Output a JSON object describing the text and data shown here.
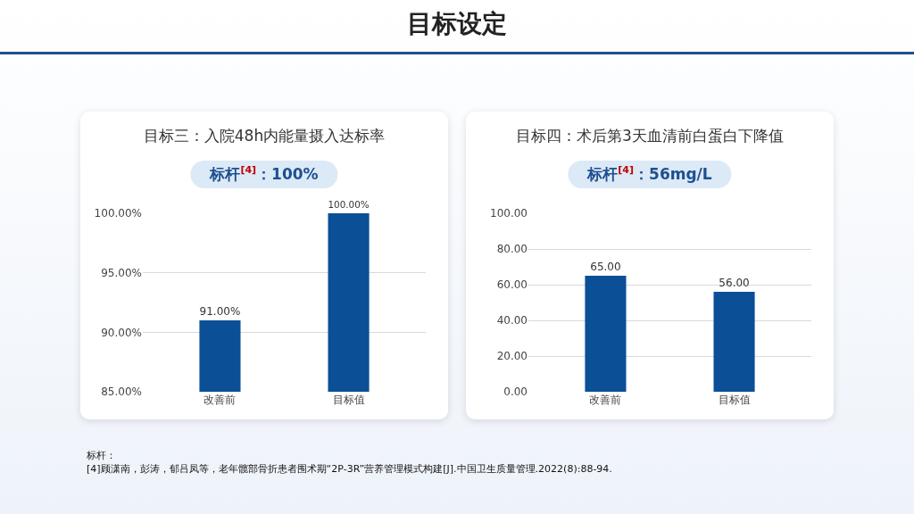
{
  "chart_data": [
    {
      "type": "bar",
      "title": "目标三：入院48h内能量摄入达标率",
      "subtitle": "标杆$^{[4]}$：100%",
      "annotations": [
        "目标设定",
        "标杆：",
        "[4]顾潇南，彭涛，郁吕凤等，老年髋部骨折患者围术期“2P-3R”营养管理模式构建[J].中国卫生质量管理.2022(8):88-94."
      ],
      "categories": [
        "改善前",
        "目标值"
      ],
      "values": [
        91,
        100
      ],
      "color": "#0b4f96",
      "value_labels": [
        "91.00%",
        "100.00%"
      ],
      "ylim": [
        85,
        100
      ],
      "yticks": [
        {
          "value": 85,
          "label": "85.00%"
        },
        {
          "value": 90,
          "label": "90.00%"
        },
        {
          "value": 95,
          "label": "95.00%"
        },
        {
          "value": 100,
          "label": "100.00%"
        }
      ],
      "grid": "y"
    },
    {
      "type": "bar",
      "title": "目标四：术后第3天血清前白蛋白下降值",
      "subtitle": "标杆$^{[4]}$：56mg/L",
      "categories": [
        "改善前",
        "目标值"
      ],
      "values": [
        65,
        56
      ],
      "color": "#0b4f96",
      "value_labels": [
        "65.00",
        "56.00"
      ],
      "ylim": [
        0,
        100
      ],
      "yticks": [
        {
          "value": 0,
          "label": "0.00"
        },
        {
          "value": 20,
          "label": "20.00"
        },
        {
          "value": 40,
          "label": "40.00"
        },
        {
          "value": 60,
          "label": "60.00"
        },
        {
          "value": 80,
          "label": "80.00"
        },
        {
          "value": 100,
          "label": "100.00"
        }
      ],
      "grid": "y"
    }
  ]
}
